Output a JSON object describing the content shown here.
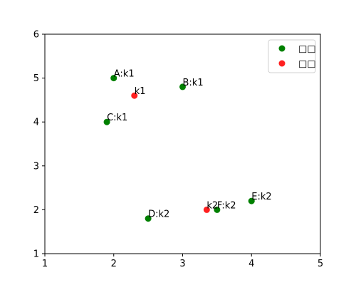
{
  "chart_data": {
    "type": "scatter",
    "title": "",
    "xlabel": "",
    "ylabel": "",
    "xlim": [
      1,
      5
    ],
    "ylim": [
      1,
      6
    ],
    "xticks": [
      1,
      2,
      3,
      4,
      5
    ],
    "yticks": [
      1,
      2,
      3,
      4,
      5,
      6
    ],
    "grid": false,
    "legend_position": "top-right",
    "series": [
      {
        "name": "□□",
        "color": "#008000",
        "points": [
          {
            "x": 2.0,
            "y": 5.0,
            "label": "A:k1"
          },
          {
            "x": 3.0,
            "y": 4.8,
            "label": "B:k1"
          },
          {
            "x": 1.9,
            "y": 4.0,
            "label": "C:k1"
          },
          {
            "x": 2.5,
            "y": 1.8,
            "label": "D:k2"
          },
          {
            "x": 4.0,
            "y": 2.2,
            "label": "E:k2"
          },
          {
            "x": 3.5,
            "y": 2.0,
            "label": "F:k2"
          }
        ]
      },
      {
        "name": "□□",
        "color": "#ff2020",
        "points": [
          {
            "x": 2.3,
            "y": 4.6,
            "label": "k1"
          },
          {
            "x": 3.35,
            "y": 2.0,
            "label": "k2"
          }
        ]
      }
    ]
  }
}
